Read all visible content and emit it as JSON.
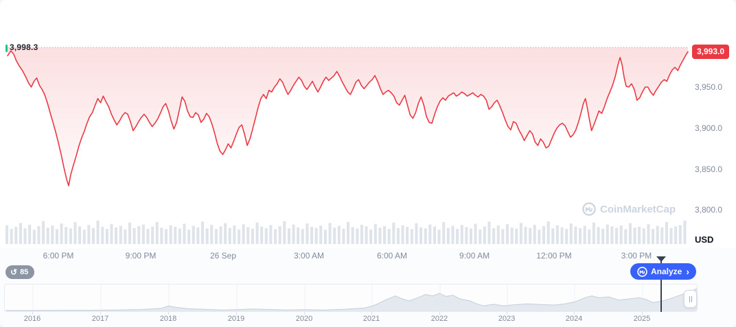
{
  "chart": {
    "open_price_label": "3,998.3",
    "last_price_label": "3,993.0",
    "y_axis_ticks": [
      "3,950.0",
      "3,900.0",
      "3,850.0",
      "3,800.0"
    ],
    "currency_label": "USD"
  },
  "watermark": {
    "text": "CoinMarketCap"
  },
  "controls": {
    "history_count": "85",
    "analyze_label": "Analyze",
    "analyze_chevron": "›"
  },
  "colors": {
    "line_red": "#ea3943",
    "green": "#16c784",
    "blue": "#3861fb",
    "volume": "#dfe4eb",
    "nav_fill": "#e4e9f0",
    "nav_stroke": "#c4cdda",
    "grid": "#eef1f6"
  },
  "chart_data": {
    "type": "line",
    "title": "24h price chart (USD)",
    "baseline": 3998.3,
    "open": 3998.3,
    "last": 3993.0,
    "low": 3830,
    "high": 3998.3,
    "y_range": [
      3800,
      4000
    ],
    "y_ticks": [
      3950,
      3900,
      3850,
      3800
    ],
    "series": [
      [
        3,
        3988
      ],
      [
        8,
        3994
      ],
      [
        12,
        3990
      ],
      [
        16,
        3982
      ],
      [
        20,
        3976
      ],
      [
        25,
        3970
      ],
      [
        30,
        3962
      ],
      [
        34,
        3955
      ],
      [
        38,
        3950
      ],
      [
        42,
        3957
      ],
      [
        46,
        3961
      ],
      [
        50,
        3952
      ],
      [
        54,
        3947
      ],
      [
        58,
        3940
      ],
      [
        62,
        3930
      ],
      [
        66,
        3918
      ],
      [
        70,
        3907
      ],
      [
        74,
        3895
      ],
      [
        78,
        3882
      ],
      [
        82,
        3868
      ],
      [
        86,
        3852
      ],
      [
        90,
        3838
      ],
      [
        93,
        3830
      ],
      [
        96,
        3843
      ],
      [
        100,
        3855
      ],
      [
        104,
        3866
      ],
      [
        108,
        3878
      ],
      [
        112,
        3888
      ],
      [
        116,
        3896
      ],
      [
        120,
        3906
      ],
      [
        124,
        3914
      ],
      [
        128,
        3919
      ],
      [
        132,
        3928
      ],
      [
        136,
        3936
      ],
      [
        140,
        3931
      ],
      [
        144,
        3939
      ],
      [
        148,
        3932
      ],
      [
        152,
        3926
      ],
      [
        156,
        3917
      ],
      [
        160,
        3910
      ],
      [
        164,
        3904
      ],
      [
        168,
        3909
      ],
      [
        172,
        3915
      ],
      [
        176,
        3919
      ],
      [
        180,
        3917
      ],
      [
        184,
        3908
      ],
      [
        188,
        3897
      ],
      [
        192,
        3902
      ],
      [
        196,
        3908
      ],
      [
        200,
        3913
      ],
      [
        204,
        3917
      ],
      [
        208,
        3913
      ],
      [
        212,
        3907
      ],
      [
        216,
        3902
      ],
      [
        220,
        3906
      ],
      [
        224,
        3911
      ],
      [
        228,
        3918
      ],
      [
        232,
        3926
      ],
      [
        236,
        3930
      ],
      [
        240,
        3921
      ],
      [
        244,
        3909
      ],
      [
        248,
        3899
      ],
      [
        252,
        3907
      ],
      [
        256,
        3922
      ],
      [
        260,
        3938
      ],
      [
        264,
        3933
      ],
      [
        268,
        3921
      ],
      [
        272,
        3914
      ],
      [
        276,
        3913
      ],
      [
        280,
        3919
      ],
      [
        284,
        3916
      ],
      [
        288,
        3907
      ],
      [
        292,
        3911
      ],
      [
        296,
        3918
      ],
      [
        300,
        3914
      ],
      [
        304,
        3905
      ],
      [
        308,
        3894
      ],
      [
        312,
        3881
      ],
      [
        316,
        3872
      ],
      [
        320,
        3868
      ],
      [
        324,
        3874
      ],
      [
        328,
        3881
      ],
      [
        332,
        3876
      ],
      [
        336,
        3884
      ],
      [
        340,
        3893
      ],
      [
        344,
        3901
      ],
      [
        348,
        3904
      ],
      [
        352,
        3893
      ],
      [
        356,
        3879
      ],
      [
        360,
        3887
      ],
      [
        364,
        3899
      ],
      [
        368,
        3912
      ],
      [
        372,
        3925
      ],
      [
        376,
        3936
      ],
      [
        380,
        3941
      ],
      [
        384,
        3936
      ],
      [
        388,
        3946
      ],
      [
        392,
        3944
      ],
      [
        396,
        3950
      ],
      [
        400,
        3954
      ],
      [
        404,
        3960
      ],
      [
        408,
        3956
      ],
      [
        412,
        3948
      ],
      [
        416,
        3941
      ],
      [
        420,
        3946
      ],
      [
        424,
        3952
      ],
      [
        428,
        3957
      ],
      [
        432,
        3962
      ],
      [
        436,
        3958
      ],
      [
        440,
        3951
      ],
      [
        444,
        3947
      ],
      [
        448,
        3952
      ],
      [
        452,
        3957
      ],
      [
        456,
        3950
      ],
      [
        460,
        3944
      ],
      [
        464,
        3950
      ],
      [
        468,
        3957
      ],
      [
        472,
        3962
      ],
      [
        476,
        3958
      ],
      [
        480,
        3961
      ],
      [
        484,
        3964
      ],
      [
        488,
        3969
      ],
      [
        492,
        3963
      ],
      [
        496,
        3956
      ],
      [
        500,
        3950
      ],
      [
        504,
        3944
      ],
      [
        508,
        3941
      ],
      [
        512,
        3948
      ],
      [
        516,
        3956
      ],
      [
        520,
        3959
      ],
      [
        524,
        3952
      ],
      [
        528,
        3948
      ],
      [
        532,
        3952
      ],
      [
        536,
        3956
      ],
      [
        540,
        3959
      ],
      [
        544,
        3964
      ],
      [
        548,
        3957
      ],
      [
        552,
        3948
      ],
      [
        556,
        3941
      ],
      [
        560,
        3944
      ],
      [
        564,
        3946
      ],
      [
        568,
        3943
      ],
      [
        572,
        3939
      ],
      [
        576,
        3931
      ],
      [
        580,
        3928
      ],
      [
        584,
        3934
      ],
      [
        588,
        3940
      ],
      [
        592,
        3928
      ],
      [
        596,
        3916
      ],
      [
        600,
        3912
      ],
      [
        604,
        3919
      ],
      [
        608,
        3930
      ],
      [
        612,
        3938
      ],
      [
        616,
        3928
      ],
      [
        620,
        3914
      ],
      [
        624,
        3907
      ],
      [
        628,
        3906
      ],
      [
        632,
        3917
      ],
      [
        636,
        3926
      ],
      [
        640,
        3933
      ],
      [
        644,
        3937
      ],
      [
        648,
        3934
      ],
      [
        652,
        3939
      ],
      [
        656,
        3941
      ],
      [
        660,
        3943
      ],
      [
        664,
        3939
      ],
      [
        668,
        3941
      ],
      [
        672,
        3944
      ],
      [
        676,
        3942
      ],
      [
        680,
        3939
      ],
      [
        684,
        3941
      ],
      [
        688,
        3943
      ],
      [
        692,
        3940
      ],
      [
        696,
        3938
      ],
      [
        700,
        3941
      ],
      [
        704,
        3939
      ],
      [
        708,
        3934
      ],
      [
        712,
        3923
      ],
      [
        716,
        3926
      ],
      [
        720,
        3931
      ],
      [
        724,
        3934
      ],
      [
        728,
        3927
      ],
      [
        732,
        3919
      ],
      [
        736,
        3910
      ],
      [
        740,
        3902
      ],
      [
        744,
        3898
      ],
      [
        748,
        3908
      ],
      [
        752,
        3906
      ],
      [
        756,
        3898
      ],
      [
        760,
        3892
      ],
      [
        764,
        3885
      ],
      [
        768,
        3891
      ],
      [
        772,
        3897
      ],
      [
        776,
        3893
      ],
      [
        780,
        3883
      ],
      [
        784,
        3879
      ],
      [
        788,
        3887
      ],
      [
        792,
        3883
      ],
      [
        796,
        3876
      ],
      [
        800,
        3878
      ],
      [
        804,
        3886
      ],
      [
        808,
        3894
      ],
      [
        812,
        3900
      ],
      [
        816,
        3904
      ],
      [
        820,
        3906
      ],
      [
        824,
        3903
      ],
      [
        828,
        3896
      ],
      [
        832,
        3889
      ],
      [
        836,
        3892
      ],
      [
        840,
        3898
      ],
      [
        844,
        3908
      ],
      [
        848,
        3920
      ],
      [
        851,
        3930
      ],
      [
        854,
        3936
      ],
      [
        857,
        3924
      ],
      [
        860,
        3910
      ],
      [
        863,
        3897
      ],
      [
        866,
        3903
      ],
      [
        870,
        3912
      ],
      [
        874,
        3921
      ],
      [
        878,
        3918
      ],
      [
        882,
        3926
      ],
      [
        886,
        3936
      ],
      [
        890,
        3944
      ],
      [
        894,
        3952
      ],
      [
        898,
        3963
      ],
      [
        902,
        3977
      ],
      [
        905,
        3986
      ],
      [
        908,
        3977
      ],
      [
        911,
        3962
      ],
      [
        914,
        3951
      ],
      [
        918,
        3950
      ],
      [
        922,
        3954
      ],
      [
        926,
        3947
      ],
      [
        930,
        3934
      ],
      [
        934,
        3937
      ],
      [
        938,
        3944
      ],
      [
        942,
        3950
      ],
      [
        946,
        3950
      ],
      [
        950,
        3944
      ],
      [
        954,
        3940
      ],
      [
        958,
        3946
      ],
      [
        962,
        3951
      ],
      [
        966,
        3956
      ],
      [
        970,
        3959
      ],
      [
        974,
        3957
      ],
      [
        978,
        3965
      ],
      [
        982,
        3971
      ],
      [
        986,
        3974
      ],
      [
        990,
        3970
      ],
      [
        994,
        3977
      ],
      [
        998,
        3983
      ],
      [
        1002,
        3989
      ],
      [
        1005,
        3993
      ]
    ],
    "volume": [
      0.72,
      0.58,
      0.66,
      0.81,
      0.6,
      0.74,
      0.55,
      0.69,
      0.88,
      0.63,
      0.71,
      0.57,
      0.79,
      0.65,
      0.6,
      0.84,
      0.68,
      0.55,
      0.73,
      0.62,
      0.9,
      0.66,
      0.58,
      0.77,
      0.64,
      0.7,
      0.56,
      0.82,
      0.61,
      0.69,
      0.75,
      0.59,
      0.67,
      0.85,
      0.63,
      0.57,
      0.72,
      0.66,
      0.6,
      0.78,
      0.55,
      0.7,
      0.64,
      0.86,
      0.6,
      0.74,
      0.58,
      0.68,
      0.8,
      0.62,
      0.71,
      0.56,
      0.76,
      0.65,
      0.59,
      0.83,
      0.67,
      0.61,
      0.73,
      0.57,
      0.69,
      0.88,
      0.6,
      0.75,
      0.64,
      0.58,
      0.79,
      0.66,
      0.62,
      0.71,
      0.55,
      0.81,
      0.63,
      0.7,
      0.59,
      0.85,
      0.65,
      0.6,
      0.74,
      0.68,
      0.56,
      0.77,
      0.63,
      0.69,
      0.58,
      0.82,
      0.61,
      0.72,
      0.66,
      0.57,
      0.8,
      0.64,
      0.6,
      0.75,
      0.67,
      0.55,
      0.84,
      0.62,
      0.7,
      0.58,
      0.73,
      0.65,
      0.6,
      0.78,
      0.56,
      0.68,
      0.86,
      0.61,
      0.71,
      0.57,
      0.76,
      0.63,
      0.59,
      0.81,
      0.66,
      0.62,
      0.74,
      0.55,
      0.69,
      0.87,
      0.6,
      0.72,
      0.64,
      0.58,
      0.79,
      0.67,
      0.61,
      0.7,
      0.56,
      0.83,
      0.65,
      0.59,
      0.75,
      0.68,
      0.62,
      0.71,
      0.57,
      0.8,
      0.63,
      0.66,
      0.6,
      0.76,
      0.58,
      0.7,
      0.64,
      0.85,
      0.61,
      0.68,
      0.73,
      0.9
    ],
    "x_ticks": [
      {
        "label": "6:00 PM",
        "f": 0.0775
      },
      {
        "label": "9:00 PM",
        "f": 0.1982
      },
      {
        "label": "26 Sep",
        "f": 0.3189
      },
      {
        "label": "3:00 AM",
        "f": 0.4447
      },
      {
        "label": "6:00 AM",
        "f": 0.5664
      },
      {
        "label": "9:00 AM",
        "f": 0.6872
      },
      {
        "label": "12:00 PM",
        "f": 0.8038
      },
      {
        "label": "3:00 PM",
        "f": 0.9245
      }
    ],
    "navigator": {
      "year0": 2016,
      "frac0": 0.0406,
      "frac_per_year": 0.0977,
      "years": [
        {
          "label": "2016",
          "f": 0.0406
        },
        {
          "label": "2017",
          "f": 0.1386
        },
        {
          "label": "2018",
          "f": 0.2366
        },
        {
          "label": "2019",
          "f": 0.3347
        },
        {
          "label": "2020",
          "f": 0.4327
        },
        {
          "label": "2021",
          "f": 0.5297
        },
        {
          "label": "2022",
          "f": 0.6277
        },
        {
          "label": "2023",
          "f": 0.7248
        },
        {
          "label": "2024",
          "f": 0.8218
        },
        {
          "label": "2025",
          "f": 0.9198
        }
      ],
      "series": [
        [
          2015.6,
          0.03
        ],
        [
          2016.0,
          0.03
        ],
        [
          2016.4,
          0.04
        ],
        [
          2016.8,
          0.04
        ],
        [
          2017.2,
          0.05
        ],
        [
          2017.6,
          0.07
        ],
        [
          2017.9,
          0.12
        ],
        [
          2018.0,
          0.22
        ],
        [
          2018.1,
          0.16
        ],
        [
          2018.3,
          0.1
        ],
        [
          2018.5,
          0.08
        ],
        [
          2018.8,
          0.05
        ],
        [
          2019.0,
          0.06
        ],
        [
          2019.25,
          0.09
        ],
        [
          2019.5,
          0.07
        ],
        [
          2019.75,
          0.05
        ],
        [
          2020.0,
          0.06
        ],
        [
          2020.3,
          0.05
        ],
        [
          2020.6,
          0.08
        ],
        [
          2020.9,
          0.13
        ],
        [
          2021.05,
          0.25
        ],
        [
          2021.2,
          0.45
        ],
        [
          2021.35,
          0.62
        ],
        [
          2021.45,
          0.5
        ],
        [
          2021.55,
          0.42
        ],
        [
          2021.65,
          0.52
        ],
        [
          2021.8,
          0.68
        ],
        [
          2021.9,
          0.62
        ],
        [
          2022.0,
          0.72
        ],
        [
          2022.1,
          0.6
        ],
        [
          2022.2,
          0.65
        ],
        [
          2022.3,
          0.5
        ],
        [
          2022.45,
          0.42
        ],
        [
          2022.55,
          0.3
        ],
        [
          2022.65,
          0.22
        ],
        [
          2022.8,
          0.28
        ],
        [
          2022.95,
          0.22
        ],
        [
          2023.1,
          0.26
        ],
        [
          2023.3,
          0.3
        ],
        [
          2023.5,
          0.27
        ],
        [
          2023.7,
          0.25
        ],
        [
          2023.85,
          0.3
        ],
        [
          2024.0,
          0.38
        ],
        [
          2024.15,
          0.55
        ],
        [
          2024.25,
          0.62
        ],
        [
          2024.35,
          0.55
        ],
        [
          2024.5,
          0.58
        ],
        [
          2024.65,
          0.45
        ],
        [
          2024.8,
          0.5
        ],
        [
          2024.95,
          0.55
        ],
        [
          2025.05,
          0.48
        ],
        [
          2025.15,
          0.35
        ],
        [
          2025.3,
          0.42
        ],
        [
          2025.45,
          0.55
        ],
        [
          2025.6,
          0.7
        ],
        [
          2025.7,
          0.8
        ],
        [
          2025.8,
          0.92
        ]
      ],
      "cursor_f": 0.947
    }
  }
}
